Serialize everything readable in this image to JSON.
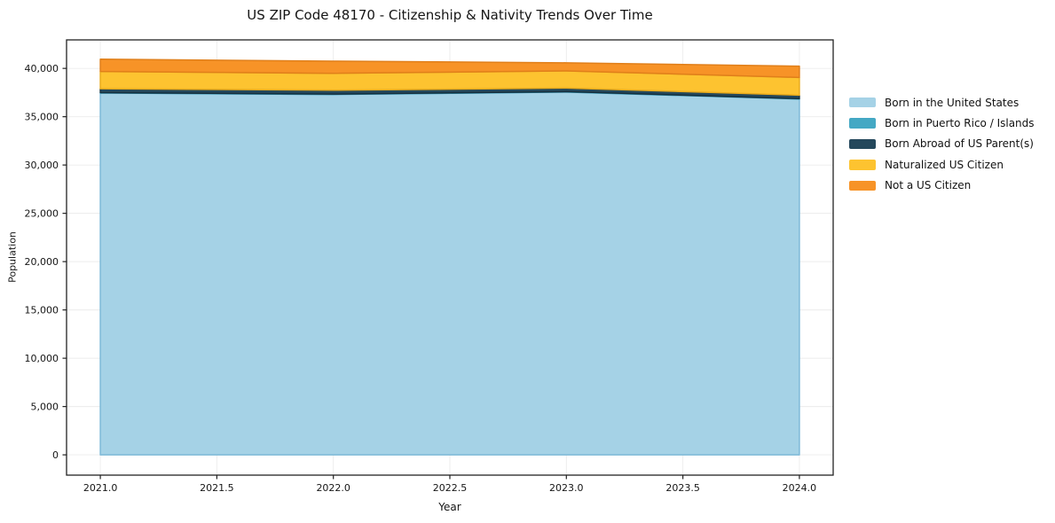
{
  "title": "US ZIP Code 48170 - Citizenship & Nativity Trends Over Time",
  "chart_data": {
    "type": "area",
    "stacked": true,
    "title": "US ZIP Code 48170 - Citizenship & Nativity Trends Over Time",
    "xlabel": "Year",
    "ylabel": "Population",
    "x": [
      2021,
      2022,
      2023,
      2024
    ],
    "series": [
      {
        "name": "Born in the United States",
        "color": "#a5d2e6",
        "edge_color": "#7db9d8",
        "values": [
          37450,
          37300,
          37550,
          36830
        ]
      },
      {
        "name": "Born in Puerto Rico / Islands",
        "color": "#44a8c4",
        "edge_color": "#2d93af",
        "values": [
          40,
          40,
          40,
          40
        ]
      },
      {
        "name": "Born Abroad of US Parent(s)",
        "color": "#24485c",
        "edge_color": "#16303f",
        "values": [
          400,
          400,
          370,
          360
        ]
      },
      {
        "name": "Naturalized US Citizen",
        "color": "#fdc330",
        "edge_color": "#e9ab1c",
        "values": [
          1790,
          1750,
          1780,
          1830
        ]
      },
      {
        "name": "Not a US Citizen",
        "color": "#f79327",
        "edge_color": "#e07f1a",
        "values": [
          1270,
          1260,
          840,
          1170
        ]
      }
    ],
    "x_ticks": [
      "2021.0",
      "2021.5",
      "2022.0",
      "2022.5",
      "2023.0",
      "2023.5",
      "2024.0"
    ],
    "x_tick_values": [
      2021,
      2021.5,
      2022,
      2022.5,
      2023,
      2023.5,
      2024
    ],
    "y_ticks": [
      "0",
      "5,000",
      "10,000",
      "15,000",
      "20,000",
      "25,000",
      "30,000",
      "35,000",
      "40,000"
    ],
    "y_tick_values": [
      0,
      5000,
      10000,
      15000,
      20000,
      25000,
      30000,
      35000,
      40000
    ],
    "xlim": [
      2020.855,
      2024.145
    ],
    "ylim": [
      -2100,
      42950
    ],
    "grid": true,
    "grid_color": "#ececec",
    "spine_color": "#222222",
    "legend_position": "right"
  }
}
